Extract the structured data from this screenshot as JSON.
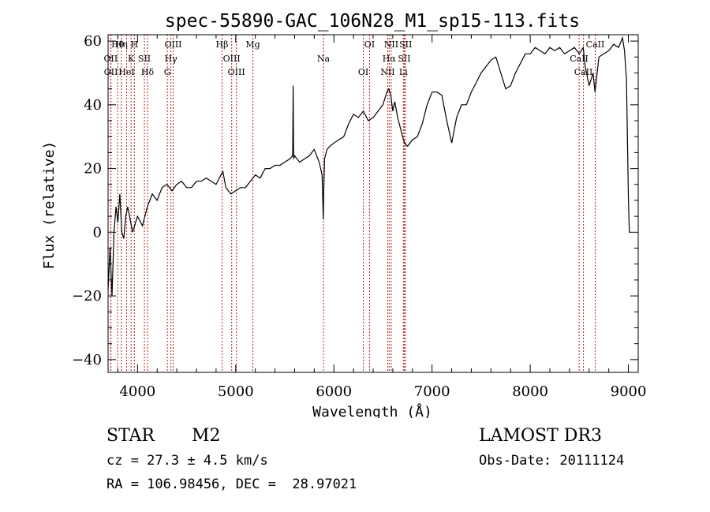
{
  "chart_data": {
    "type": "line",
    "title": "spec-55890-GAC_106N28_M1_sp15-113.fits",
    "xlabel": "Wavelength (Å)",
    "ylabel": "Flux (relative)",
    "xlim": [
      3700,
      9100
    ],
    "ylim": [
      -44,
      62
    ],
    "xticks": [
      4000,
      5000,
      6000,
      7000,
      8000,
      9000
    ],
    "yticks": [
      -40,
      -20,
      0,
      20,
      40,
      60
    ],
    "grid": false,
    "series": [
      {
        "name": "flux",
        "x": [
          3700,
          3720,
          3740,
          3760,
          3780,
          3800,
          3820,
          3840,
          3860,
          3880,
          3900,
          3950,
          4000,
          4050,
          4100,
          4150,
          4200,
          4250,
          4300,
          4350,
          4400,
          4450,
          4500,
          4550,
          4600,
          4650,
          4700,
          4750,
          4800,
          4850,
          4870,
          4900,
          4950,
          5000,
          5050,
          5100,
          5150,
          5200,
          5250,
          5300,
          5350,
          5400,
          5450,
          5500,
          5550,
          5580,
          5585,
          5590,
          5600,
          5650,
          5700,
          5750,
          5800,
          5850,
          5880,
          5892,
          5896,
          5905,
          5930,
          5960,
          6000,
          6050,
          6100,
          6150,
          6200,
          6250,
          6300,
          6350,
          6400,
          6450,
          6500,
          6540,
          6560,
          6580,
          6600,
          6620,
          6650,
          6700,
          6720,
          6750,
          6800,
          6850,
          6900,
          6950,
          7000,
          7050,
          7100,
          7150,
          7200,
          7250,
          7300,
          7350,
          7400,
          7450,
          7500,
          7550,
          7600,
          7650,
          7700,
          7750,
          7800,
          7850,
          7900,
          7950,
          8000,
          8050,
          8100,
          8150,
          8200,
          8250,
          8300,
          8350,
          8400,
          8450,
          8500,
          8540,
          8560,
          8600,
          8640,
          8660,
          8700,
          8750,
          8800,
          8850,
          8900,
          8940,
          8960,
          8980,
          9000,
          9010,
          9020
        ],
        "y": [
          -18,
          -5,
          -20,
          0,
          8,
          3,
          12,
          0,
          -2,
          5,
          8,
          0,
          5,
          2,
          8,
          12,
          10,
          14,
          15,
          13,
          15,
          16,
          14,
          14,
          16,
          16,
          17,
          16,
          15,
          18,
          19,
          14,
          12,
          13,
          14,
          14,
          16,
          18,
          17,
          20,
          20,
          21,
          21,
          22,
          23,
          24,
          46,
          23,
          24,
          22,
          23,
          24,
          26,
          22,
          18,
          4,
          12,
          23,
          26,
          27,
          28,
          29,
          30,
          34,
          37,
          36,
          38,
          35,
          36,
          38,
          40,
          44,
          45,
          43,
          38,
          41,
          36,
          30,
          28,
          27,
          29,
          30,
          34,
          40,
          44,
          44,
          43,
          35,
          28,
          36,
          40,
          40,
          44,
          47,
          50,
          52,
          54,
          55,
          50,
          45,
          46,
          50,
          53,
          56,
          56,
          58,
          57,
          56,
          58,
          57,
          58,
          56,
          57,
          58,
          56,
          58,
          52,
          46,
          50,
          44,
          55,
          56,
          57,
          59,
          58,
          61,
          57,
          48,
          10,
          0,
          0
        ]
      }
    ],
    "lines": [
      {
        "label": "Hθ",
        "x": 3798
      },
      {
        "label": "OII",
        "x": 3727
      },
      {
        "label": "OII",
        "x": 3729
      },
      {
        "label": "Hη",
        "x": 3835
      },
      {
        "label": "K",
        "x": 3934
      },
      {
        "label": "HeI",
        "x": 3889
      },
      {
        "label": "H",
        "x": 3968
      },
      {
        "label": "SII",
        "x": 4070
      },
      {
        "label": "Hδ",
        "x": 4102
      },
      {
        "label": "OIII",
        "x": 4363
      },
      {
        "label": "Hγ",
        "x": 4340
      },
      {
        "label": "G",
        "x": 4304
      },
      {
        "label": "Hβ",
        "x": 4861
      },
      {
        "label": "OIII",
        "x": 4959
      },
      {
        "label": "OIII",
        "x": 5007
      },
      {
        "label": "Mg",
        "x": 5175
      },
      {
        "label": "Na",
        "x": 5894
      },
      {
        "label": "OI",
        "x": 6300
      },
      {
        "label": "OI",
        "x": 6363
      },
      {
        "label": "Hα",
        "x": 6563
      },
      {
        "label": "NII",
        "x": 6548
      },
      {
        "label": "NII",
        "x": 6584
      },
      {
        "label": "SII",
        "x": 6717
      },
      {
        "label": "Li",
        "x": 6708
      },
      {
        "label": "SII",
        "x": 6731
      },
      {
        "label": "CaII",
        "x": 8498
      },
      {
        "label": "CaII",
        "x": 8542
      },
      {
        "label": "CaII",
        "x": 8662
      }
    ]
  },
  "info": {
    "class_label": "STAR",
    "subclass": "M2",
    "survey": "LAMOST DR3",
    "cz": "cz = 27.3 ± 4.5 km/s",
    "obs_date": "Obs-Date: 20111124",
    "radec": "RA = 106.98456, DEC =  28.97021"
  }
}
